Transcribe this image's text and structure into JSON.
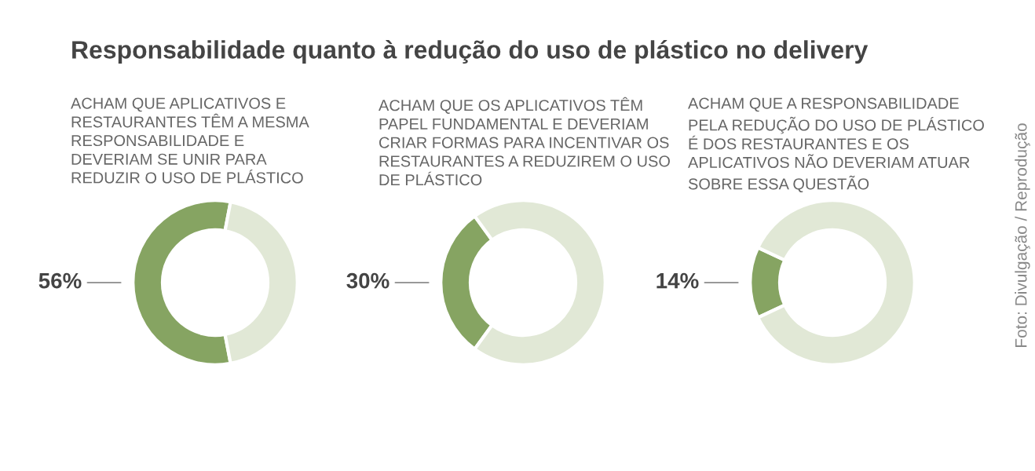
{
  "chart_data": [
    {
      "type": "donut",
      "title": "Responsabilidade quanto à redução do uso de plástico no delivery",
      "subtitle": "ACHAM QUE APLICATIVOS E\nRESTAURANTES TÊM A MESMA\nRESPONSABILIDADE E\nDEVERIAM SE UNIR PARA\nREDUZIR O USO DE PLÁSTICO",
      "categories": [
        null,
        null
      ],
      "values": [
        56,
        44
      ],
      "colors": [
        "#86a462",
        "#e1e8d6"
      ],
      "value_labels": [
        "56%",
        null
      ]
    },
    {
      "type": "donut",
      "subtitle": "ACHAM QUE OS APLICATIVOS TÊM\nPAPEL FUNDAMENTAL E DEVERIAM\nCRIAR FORMAS PARA INCENTIVAR OS\nRESTAURANTES A REDUZIREM O USO\nDE PLÁSTICO",
      "categories": [
        null,
        null
      ],
      "values": [
        30,
        70
      ],
      "colors": [
        "#86a462",
        "#e1e8d6"
      ],
      "value_labels": [
        "30%",
        null
      ]
    },
    {
      "type": "donut",
      "subtitle": "ACHAM QUE A RESPONSABILIDADE\nPELA REDUÇÃO DO USO DE PLÁSTICO\nÉ DOS RESTAURANTES E OS\nAPLICATIVOS NÃO DEVERIAM ATUAR\nSOBRE ESSA QUESTÃO",
      "categories": [
        null,
        null
      ],
      "values": [
        14,
        86
      ],
      "colors": [
        "#86a462",
        "#e1e8d6"
      ],
      "value_labels": [
        "14%",
        null
      ],
      "annotations": [
        "Foto: Divulgação / Reprodução"
      ]
    }
  ]
}
